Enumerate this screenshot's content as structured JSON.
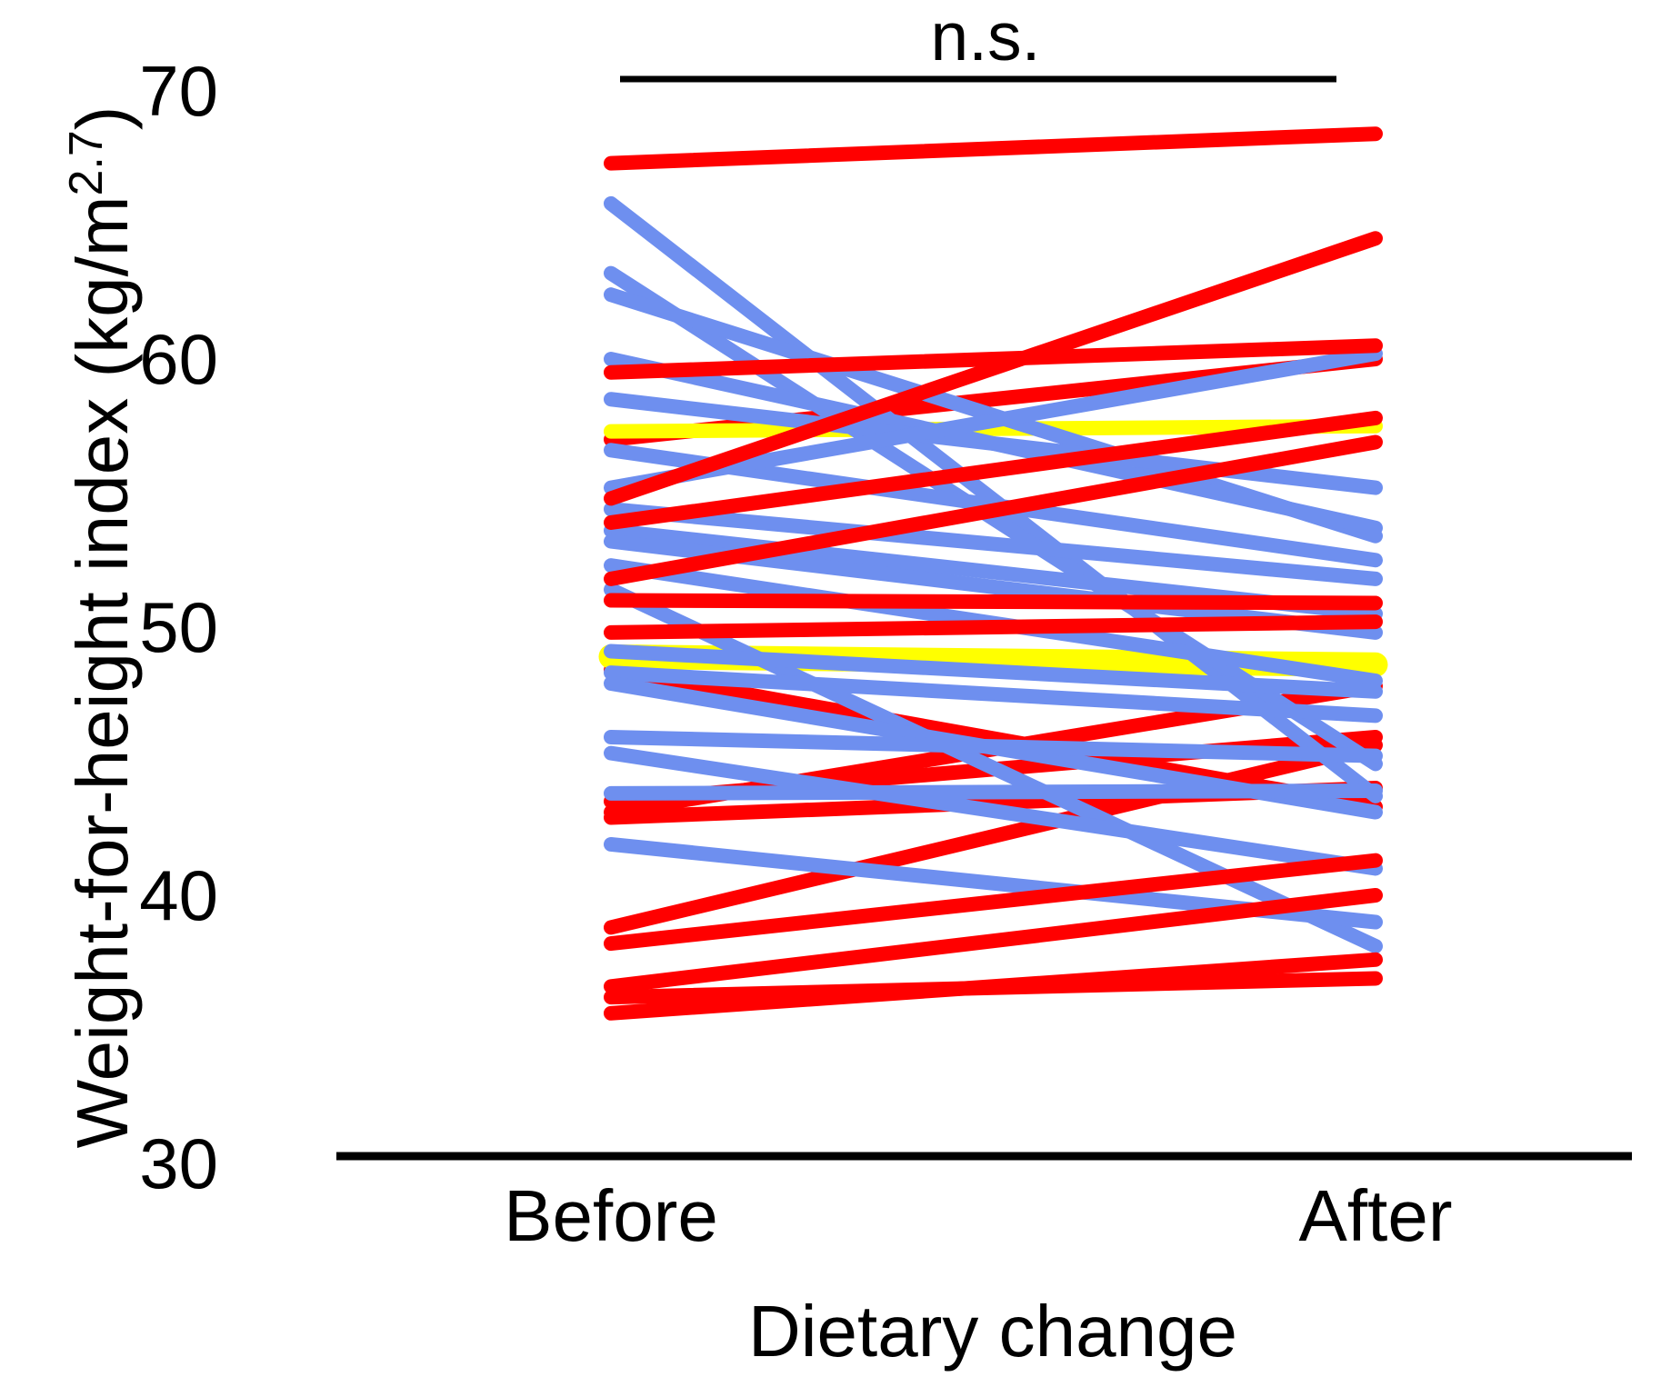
{
  "labels": {
    "y_axis_title_main": "Weight-for-height index (kg/m",
    "y_axis_title_sup": "2.7",
    "y_axis_title_close": ")",
    "x_axis_title": "Dietary change",
    "category_before": "Before",
    "category_after": "After",
    "significance_annotation": "n.s."
  },
  "colors": {
    "red": "#FF0000",
    "blue": "#6E8FEF",
    "yellow": "#FFFF00",
    "axis": "#000000",
    "background": "#FFFFFF"
  },
  "chart_data": {
    "type": "line",
    "subtype": "paired-slope-chart",
    "title": "",
    "xlabel": "Dietary change",
    "ylabel": "Weight-for-height index (kg/m^2.7)",
    "annotation": "n.s.",
    "annotation_position": "top-center, above bracket spanning Before to After",
    "categories": [
      "Before",
      "After"
    ],
    "ylim": [
      30,
      70
    ],
    "yticks": [
      70,
      60,
      50,
      40,
      30
    ],
    "grid": false,
    "legend": "none",
    "series": [
      {
        "name": "pair-red-01",
        "color": "red",
        "before": 57.0,
        "after": 60.0,
        "z": 0
      },
      {
        "name": "pair-red-02",
        "color": "red",
        "before": 48.4,
        "after": 43.3,
        "z": 0
      },
      {
        "name": "pair-red-03",
        "color": "red",
        "before": 42.9,
        "after": 44.0,
        "z": 0
      },
      {
        "name": "pair-red-04",
        "color": "red",
        "before": 43.1,
        "after": 47.8,
        "z": 0
      },
      {
        "name": "pair-red-05",
        "color": "red",
        "before": 43.5,
        "after": 45.9,
        "z": 0
      },
      {
        "name": "pair-red-06",
        "color": "red",
        "before": 38.8,
        "after": 45.6,
        "z": 0
      },
      {
        "name": "pair-red-07",
        "color": "red",
        "before": 36.2,
        "after": 36.9,
        "z": 0
      },
      {
        "name": "pair-yellow-01",
        "color": "yellow",
        "before": 57.3,
        "after": 57.5,
        "z": 1
      },
      {
        "name": "pair-yellow-02",
        "color": "yellow",
        "before": 48.9,
        "after": 48.6,
        "z": 1,
        "thick": true
      },
      {
        "name": "pair-blue-01",
        "color": "blue",
        "before": 65.8,
        "after": 43.7,
        "z": 2
      },
      {
        "name": "pair-blue-02",
        "color": "blue",
        "before": 63.2,
        "after": 44.9,
        "z": 2
      },
      {
        "name": "pair-blue-03",
        "color": "blue",
        "before": 62.4,
        "after": 53.4,
        "z": 2
      },
      {
        "name": "pair-blue-04",
        "color": "blue",
        "before": 60.0,
        "after": 53.7,
        "z": 2
      },
      {
        "name": "pair-blue-05",
        "color": "blue",
        "before": 58.5,
        "after": 55.2,
        "z": 2
      },
      {
        "name": "pair-blue-06",
        "color": "blue",
        "before": 56.6,
        "after": 52.5,
        "z": 2
      },
      {
        "name": "pair-blue-07",
        "color": "blue",
        "before": 55.2,
        "after": 60.2,
        "z": 2
      },
      {
        "name": "pair-blue-08",
        "color": "blue",
        "before": 54.4,
        "after": 51.8,
        "z": 2
      },
      {
        "name": "pair-blue-09",
        "color": "blue",
        "before": 53.6,
        "after": 50.5,
        "z": 2
      },
      {
        "name": "pair-blue-10",
        "color": "blue",
        "before": 53.2,
        "after": 49.8,
        "z": 2
      },
      {
        "name": "pair-blue-11",
        "color": "blue",
        "before": 52.3,
        "after": 48.0,
        "z": 2
      },
      {
        "name": "pair-blue-12",
        "color": "blue",
        "before": 51.4,
        "after": 38.1,
        "z": 2
      },
      {
        "name": "pair-blue-13",
        "color": "blue",
        "before": 49.1,
        "after": 47.6,
        "z": 2
      },
      {
        "name": "pair-blue-14",
        "color": "blue",
        "before": 48.3,
        "after": 46.7,
        "z": 2
      },
      {
        "name": "pair-blue-15",
        "color": "blue",
        "before": 47.9,
        "after": 43.1,
        "z": 2
      },
      {
        "name": "pair-blue-16",
        "color": "blue",
        "before": 45.9,
        "after": 45.2,
        "z": 2
      },
      {
        "name": "pair-blue-17",
        "color": "blue",
        "before": 45.3,
        "after": 41.0,
        "z": 2
      },
      {
        "name": "pair-blue-18",
        "color": "blue",
        "before": 43.8,
        "after": 43.9,
        "z": 2
      },
      {
        "name": "pair-blue-19",
        "color": "blue",
        "before": 41.9,
        "after": 39.0,
        "z": 2
      },
      {
        "name": "pair-red-08",
        "color": "red",
        "before": 67.3,
        "after": 68.4,
        "z": 3
      },
      {
        "name": "pair-red-09",
        "color": "red",
        "before": 59.5,
        "after": 60.5,
        "z": 3
      },
      {
        "name": "pair-red-10",
        "color": "red",
        "before": 54.8,
        "after": 64.5,
        "z": 3
      },
      {
        "name": "pair-red-11",
        "color": "red",
        "before": 53.9,
        "after": 57.8,
        "z": 3
      },
      {
        "name": "pair-red-12",
        "color": "red",
        "before": 51.8,
        "after": 56.9,
        "z": 3
      },
      {
        "name": "pair-red-13",
        "color": "red",
        "before": 51.0,
        "after": 50.9,
        "z": 3
      },
      {
        "name": "pair-red-14",
        "color": "red",
        "before": 49.8,
        "after": 50.2,
        "z": 3
      },
      {
        "name": "pair-red-15",
        "color": "red",
        "before": 38.2,
        "after": 41.3,
        "z": 3
      },
      {
        "name": "pair-red-16",
        "color": "red",
        "before": 36.6,
        "after": 40.0,
        "z": 3
      },
      {
        "name": "pair-red-17",
        "color": "red",
        "before": 35.6,
        "after": 37.6,
        "z": 3
      }
    ]
  }
}
